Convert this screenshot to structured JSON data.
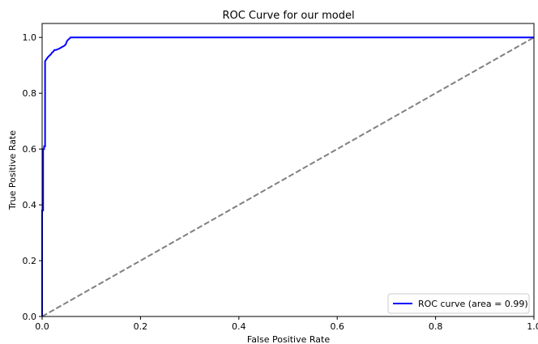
{
  "chart_data": {
    "type": "line",
    "title": "ROC Curve for our model",
    "xlabel": "False Positive Rate",
    "ylabel": "True Positive Rate",
    "xlim": [
      0.0,
      1.0
    ],
    "ylim": [
      0.0,
      1.05
    ],
    "xticks": [
      "0.0",
      "0.2",
      "0.4",
      "0.6",
      "0.8",
      "1.0"
    ],
    "yticks": [
      "0.0",
      "0.2",
      "0.4",
      "0.6",
      "0.8",
      "1.0"
    ],
    "grid": false,
    "legend_position": "lower-right",
    "series": [
      {
        "name": "ROC curve (area = 0.99)",
        "color": "#0000ff",
        "style": "solid",
        "x": [
          0.0,
          0.0,
          0.002,
          0.002,
          0.004,
          0.004,
          0.006,
          0.006,
          0.008,
          0.01,
          0.012,
          0.015,
          0.018,
          0.02,
          0.023,
          0.025,
          0.028,
          0.035,
          0.04,
          0.045,
          0.048,
          0.05,
          0.052,
          0.055,
          0.058,
          0.06,
          1.0
        ],
        "y": [
          0.0,
          0.38,
          0.38,
          0.6,
          0.6,
          0.61,
          0.61,
          0.915,
          0.92,
          0.925,
          0.93,
          0.935,
          0.94,
          0.945,
          0.95,
          0.955,
          0.955,
          0.96,
          0.965,
          0.97,
          0.975,
          0.985,
          0.99,
          0.995,
          1.0,
          1.0,
          1.0
        ]
      },
      {
        "color": "#808080",
        "style": "dashed",
        "x": [
          0.0,
          1.0
        ],
        "y": [
          0.0,
          1.0
        ]
      }
    ]
  }
}
